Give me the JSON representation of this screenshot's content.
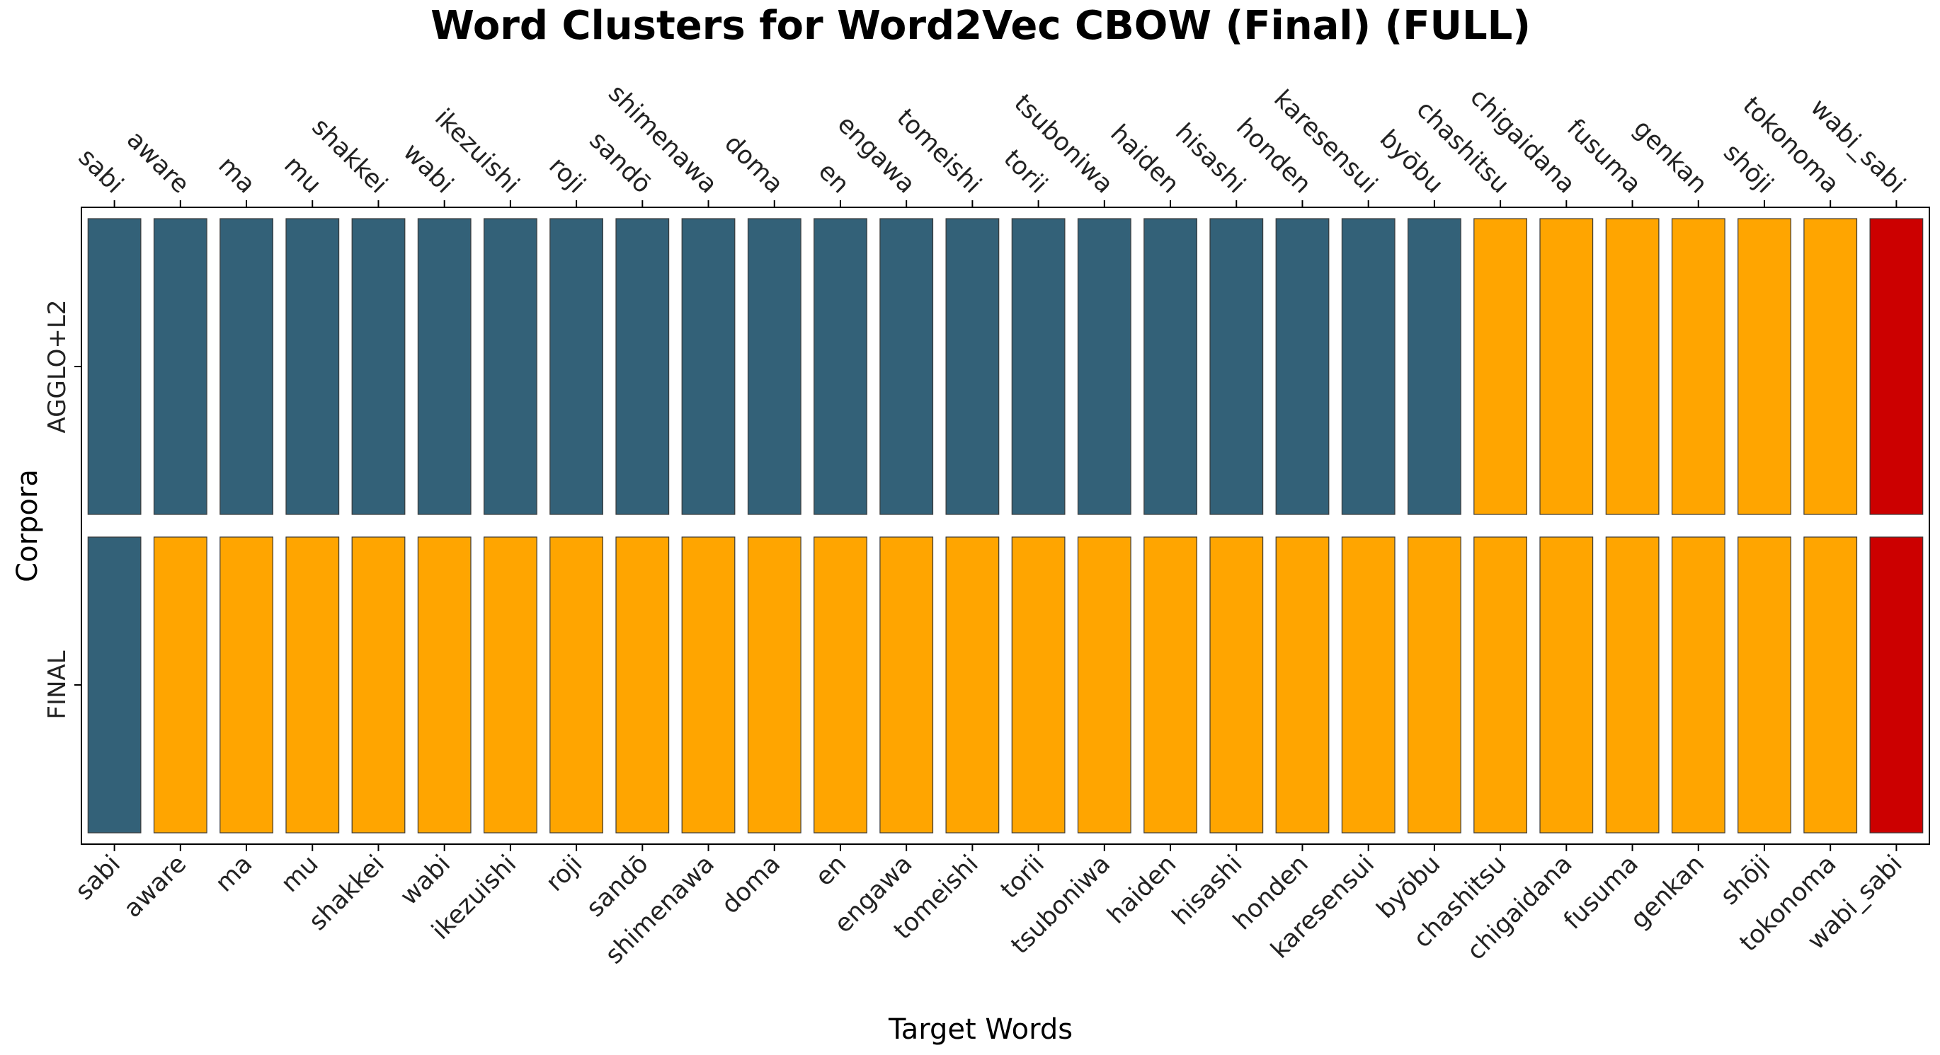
{
  "chart_data": {
    "type": "heatmap",
    "title": "Word Clusters for Word2Vec CBOW (Final) (FULL)",
    "xlabel": "Target Words",
    "ylabel": "Corpora",
    "categories": [
      "sabi",
      "aware",
      "ma",
      "mu",
      "shakkei",
      "wabi",
      "ikezuishi",
      "roji",
      "sandō",
      "shimenawa",
      "doma",
      "en",
      "engawa",
      "tomeishi",
      "torii",
      "tsuboniwa",
      "haiden",
      "hisashi",
      "honden",
      "karesensui",
      "byōbu",
      "chashitsu",
      "chigaidana",
      "fusuma",
      "genkan",
      "shōji",
      "tokonoma",
      "wabi_sabi"
    ],
    "cluster_colors": {
      "0": "#336178",
      "1": "#ffa500",
      "2": "#cc0000"
    },
    "series": [
      {
        "name": "AGGLO+L2",
        "values": [
          0,
          0,
          0,
          0,
          0,
          0,
          0,
          0,
          0,
          0,
          0,
          0,
          0,
          0,
          0,
          0,
          0,
          0,
          0,
          0,
          0,
          1,
          1,
          1,
          1,
          1,
          1,
          2
        ]
      },
      {
        "name": "FINAL",
        "values": [
          0,
          1,
          1,
          1,
          1,
          1,
          1,
          1,
          1,
          1,
          1,
          1,
          1,
          1,
          1,
          1,
          1,
          1,
          1,
          1,
          1,
          1,
          1,
          1,
          1,
          1,
          1,
          2
        ]
      }
    ],
    "grid": false,
    "legend": "none"
  }
}
